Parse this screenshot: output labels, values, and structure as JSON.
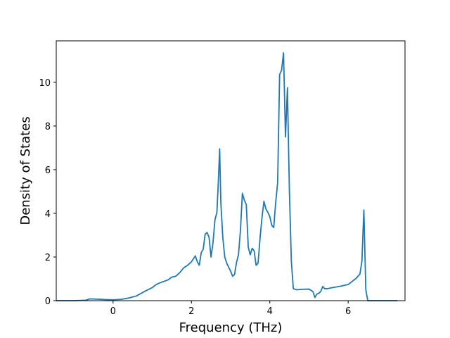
{
  "chart_data": {
    "type": "line",
    "title": "",
    "xlabel": "Frequency (THz)",
    "ylabel": "Density of States",
    "xlim": [
      -1.45,
      7.45
    ],
    "ylim": [
      0,
      11.9
    ],
    "x_ticks": [
      0,
      2,
      4,
      6
    ],
    "x_tick_labels": [
      "0",
      "2",
      "4",
      "6"
    ],
    "y_ticks": [
      0,
      2,
      4,
      6,
      8,
      10
    ],
    "y_tick_labels": [
      "0",
      "2",
      "4",
      "6",
      "8",
      "10"
    ],
    "grid": false,
    "line_color": "#1f77b4",
    "series": [
      {
        "x": [
          -1.45,
          -1.0,
          -0.7,
          -0.6,
          -0.4,
          -0.2,
          0.0,
          0.2,
          0.4,
          0.6,
          0.8,
          1.0,
          1.1,
          1.2,
          1.4,
          1.5,
          1.6,
          1.7,
          1.8,
          1.9,
          2.0,
          2.1,
          2.15,
          2.2,
          2.25,
          2.3,
          2.35,
          2.4,
          2.45,
          2.5,
          2.55,
          2.6,
          2.65,
          2.68,
          2.72,
          2.75,
          2.8,
          2.85,
          2.9,
          3.0,
          3.05,
          3.1,
          3.15,
          3.2,
          3.25,
          3.3,
          3.35,
          3.4,
          3.45,
          3.5,
          3.55,
          3.6,
          3.65,
          3.7,
          3.75,
          3.8,
          3.85,
          3.9,
          3.95,
          4.0,
          4.05,
          4.1,
          4.15,
          4.2,
          4.25,
          4.3,
          4.35,
          4.4,
          4.45,
          4.47,
          4.5,
          4.55,
          4.6,
          4.65,
          4.7,
          4.8,
          5.0,
          5.1,
          5.15,
          5.2,
          5.25,
          5.3,
          5.35,
          5.4,
          5.45,
          5.5,
          5.6,
          5.7,
          5.8,
          5.9,
          6.0,
          6.1,
          6.2,
          6.3,
          6.35,
          6.4,
          6.45,
          6.5,
          6.55,
          6.6,
          7.25
        ],
        "y": [
          0,
          0,
          0.02,
          0.08,
          0.07,
          0.05,
          0.04,
          0.06,
          0.12,
          0.22,
          0.42,
          0.6,
          0.74,
          0.82,
          0.95,
          1.08,
          1.12,
          1.28,
          1.5,
          1.62,
          1.78,
          2.05,
          1.78,
          1.62,
          2.2,
          2.35,
          3.05,
          3.12,
          2.9,
          2.0,
          2.65,
          3.7,
          4.05,
          5.2,
          6.95,
          4.5,
          2.9,
          2.0,
          1.72,
          1.35,
          1.12,
          1.2,
          1.75,
          2.1,
          3.2,
          4.92,
          4.6,
          4.4,
          2.45,
          2.1,
          2.4,
          2.28,
          1.62,
          1.72,
          2.85,
          3.8,
          4.55,
          4.2,
          4.05,
          3.85,
          3.45,
          3.35,
          4.5,
          5.4,
          10.35,
          10.55,
          11.35,
          7.5,
          9.75,
          7.8,
          5.0,
          1.8,
          0.55,
          0.52,
          0.5,
          0.52,
          0.53,
          0.42,
          0.15,
          0.3,
          0.34,
          0.42,
          0.65,
          0.55,
          0.55,
          0.56,
          0.6,
          0.63,
          0.66,
          0.7,
          0.74,
          0.88,
          1.02,
          1.22,
          1.8,
          4.15,
          0.5,
          0,
          0,
          0,
          0
        ]
      }
    ]
  }
}
